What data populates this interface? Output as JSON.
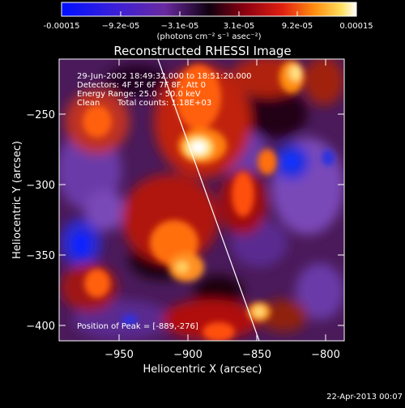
{
  "colorbar": {
    "tick_labels": [
      "-0.00015",
      "−9.2e-05",
      "−3.1e-05",
      "3.1e-05",
      "9.2e-05",
      "0.00015"
    ],
    "units": "(photons cm⁻² s⁻¹ asec⁻²)"
  },
  "plot": {
    "title": "Reconstructed RHESSI Image",
    "xlabel": "Heliocentric X (arcsec)",
    "ylabel": "Heliocentric Y (arcsec)",
    "x_ticks": [
      "−950",
      "−900",
      "−850",
      "−800"
    ],
    "y_ticks": [
      "−250",
      "−300",
      "−350",
      "−400"
    ]
  },
  "annotations": {
    "time_range": "29-Jun-2002 18:49:32.000 to 18:51:20.000",
    "detectors": "Detectors: 4F 5F 6F 7F 8F, Att 0",
    "energy": "Energy Range: 25.0 - 50.0 keV",
    "clean": "Clean",
    "total_counts": "Total counts: 1.18E+03",
    "peak": "Position of Peak = [-889,-276]"
  },
  "footer": {
    "date": "22-Apr-2013 00:07"
  },
  "colors": {
    "background": "#000000",
    "text": "#ffffff"
  },
  "chart_data": {
    "type": "heatmap",
    "title": "Reconstructed RHESSI Image",
    "xlabel": "Heliocentric X (arcsec)",
    "ylabel": "Heliocentric Y (arcsec)",
    "colorbar_range": [
      -0.00015,
      0.00015
    ],
    "colormap": "blue-purple-black-red-orange-yellow-white",
    "peak": [
      -889,
      -276
    ]
  }
}
